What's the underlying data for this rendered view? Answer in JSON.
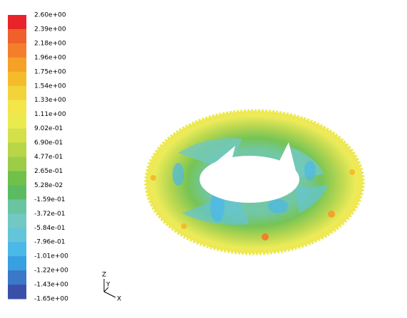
{
  "legend": {
    "labels": [
      "2.60e+00",
      "2.39e+00",
      "2.18e+00",
      "1.96e+00",
      "1.75e+00",
      "1.54e+00",
      "1.33e+00",
      "1.11e+00",
      "9.02e-01",
      "6.90e-01",
      "4.77e-01",
      "2.65e-01",
      "5.28e-02",
      "-1.59e-01",
      "-3.72e-01",
      "-5.84e-01",
      "-7.96e-01",
      "-1.01e+00",
      "-1.22e+00",
      "-1.43e+00",
      "-1.65e+00"
    ],
    "colors": [
      "#e8242a",
      "#f0602a",
      "#f47f2a",
      "#f5a127",
      "#f5bc2a",
      "#f2d33a",
      "#f3e54a",
      "#eaea50",
      "#d3e04a",
      "#b8d648",
      "#9ccc48",
      "#6fc14c",
      "#5cbb62",
      "#6ac4a0",
      "#72c8c2",
      "#64c4d8",
      "#4cb8e8",
      "#38a0e0",
      "#3a78c8",
      "#3a50a8"
    ]
  },
  "axes": {
    "z": "Z",
    "y": "Y",
    "x": "X"
  }
}
